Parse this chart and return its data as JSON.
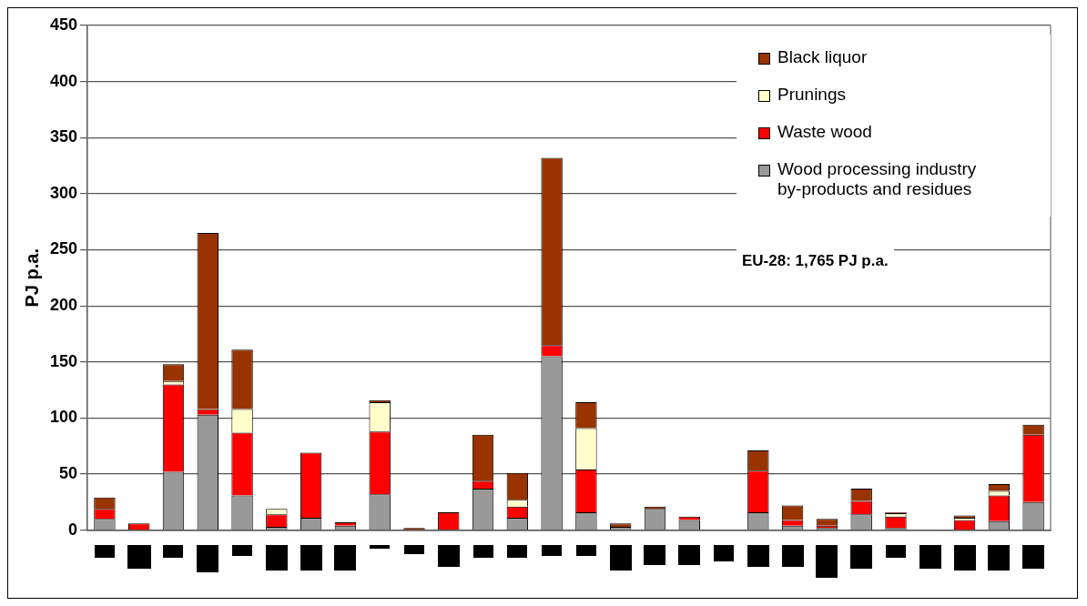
{
  "chart_data": {
    "type": "bar",
    "ylabel": "PJ p.a.",
    "stacked": true,
    "grid": "y",
    "legend": "top right",
    "categories": [
      null,
      null,
      null,
      null,
      null,
      null,
      null,
      null,
      null,
      null,
      null,
      null,
      null,
      null,
      null,
      null,
      null,
      null,
      null,
      null,
      null,
      null,
      null,
      null,
      null,
      null,
      null,
      null
    ],
    "ylim": [
      0,
      450
    ],
    "yticks": [
      0,
      50,
      100,
      150,
      200,
      250,
      300,
      350,
      400,
      450
    ],
    "series": [
      {
        "name": "Wood processing industry by-products and residues",
        "color": "#999999",
        "values": [
          10,
          0,
          52,
          103,
          31,
          3,
          11,
          4,
          32,
          0,
          0,
          37,
          11,
          155,
          16,
          3,
          19,
          9,
          0,
          16,
          4,
          2,
          14,
          2,
          0,
          0,
          8,
          25
        ]
      },
      {
        "name": "Waste wood",
        "color": "#ff0000",
        "values": [
          9,
          6,
          78,
          5,
          56,
          11,
          58,
          3,
          56,
          0,
          16,
          7,
          10,
          10,
          38,
          0,
          0,
          3,
          0,
          37,
          5,
          2,
          12,
          10,
          0,
          9,
          23,
          60
        ]
      },
      {
        "name": "Prunings",
        "color": "#ffffcc",
        "values": [
          0,
          0,
          3,
          0,
          21,
          5,
          0,
          0,
          26,
          0,
          0,
          0,
          6,
          0,
          37,
          0,
          0,
          0,
          0,
          0,
          0,
          0,
          0,
          3,
          0,
          2,
          4,
          0
        ]
      },
      {
        "name": "Black liquor",
        "color": "#993300",
        "values": [
          10,
          0,
          15,
          157,
          53,
          0,
          0,
          0,
          2,
          2,
          0,
          41,
          24,
          167,
          23,
          3,
          2,
          0,
          0,
          18,
          13,
          6,
          11,
          1,
          0,
          2,
          6,
          9
        ]
      }
    ],
    "annotations": [
      "EU-28: 1,765 PJ p.a."
    ]
  }
}
